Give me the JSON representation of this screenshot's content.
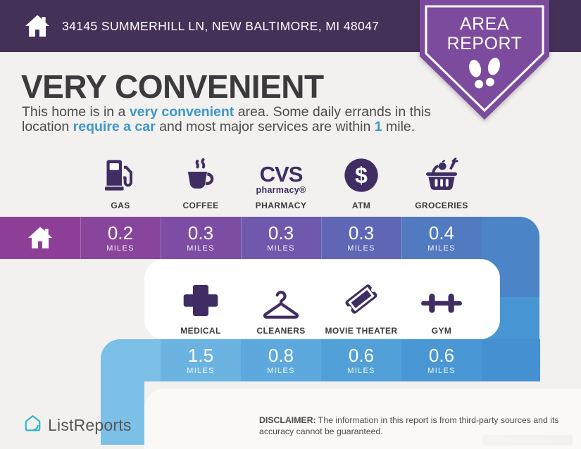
{
  "header": {
    "address": "34145 SUMMERHILL LN, NEW BALTIMORE, MI 48047"
  },
  "badge": {
    "title_line1": "AREA",
    "title_line2": "REPORT"
  },
  "hero": {
    "title": "VERY CONVENIENT",
    "description_line1": [
      {
        "text": "This home is in a "
      },
      {
        "text": "very convenient",
        "highlight": true
      },
      {
        "text": " area. Some daily errands in this"
      }
    ],
    "description_line2": [
      {
        "text": "location "
      },
      {
        "text": "require a car",
        "highlight": true
      },
      {
        "text": " and most major services are within "
      },
      {
        "text": "1",
        "highlight": true
      },
      {
        "text": " mile."
      }
    ]
  },
  "services": {
    "row1": [
      {
        "label": "GAS",
        "icon": "gas-icon"
      },
      {
        "label": "COFFEE",
        "icon": "coffee-icon"
      },
      {
        "label": "PHARMACY",
        "icon": "cvs-pharmacy-logo",
        "brand_top": "CVS",
        "brand_bottom": "pharmacy®"
      },
      {
        "label": "ATM",
        "icon": "atm-icon"
      },
      {
        "label": "GROCERIES",
        "icon": "groceries-icon"
      }
    ],
    "row2": [
      {
        "label": "MEDICAL",
        "icon": "medical-icon"
      },
      {
        "label": "CLEANERS",
        "icon": "cleaners-icon"
      },
      {
        "label": "MOVIE THEATER",
        "icon": "movie-theater-icon"
      },
      {
        "label": "GYM",
        "icon": "gym-icon"
      }
    ]
  },
  "bars": {
    "unit_label": "MILES",
    "bar1": {
      "distances": [
        "0.2",
        "0.3",
        "0.3",
        "0.3",
        "0.4"
      ],
      "segment_colors": [
        "#8d3f97",
        "#89449c",
        "#7d4da3",
        "#6e59ac",
        "#5e66b5",
        "#527ac1"
      ]
    },
    "bar2": {
      "distances": [
        "1.5",
        "0.8",
        "0.6",
        "0.6"
      ],
      "segment_colors": [
        "#7cc0e7",
        "#6bb4e2",
        "#5da9dd",
        "#51a0d8",
        "#4997d4",
        "#4590d0"
      ]
    },
    "connector_right": {
      "top_color": "#4b84c7",
      "bottom_color": "#4795d3"
    },
    "connector_left_color": "#7cc0e7"
  },
  "footer": {
    "brand": "ListReports",
    "disclaimer_label": "DISCLAIMER:",
    "disclaimer_line1": " The information in this report is from third-party sources and its",
    "disclaimer_line2": "accuracy cannot be guaranteed."
  },
  "colors": {
    "header_bg": "#443157",
    "badge_bg": "#7c4b9e",
    "accent_blue": "#3e97c9",
    "icon_purple": "#3f2d63",
    "page_bg": "#f2f1ef"
  }
}
